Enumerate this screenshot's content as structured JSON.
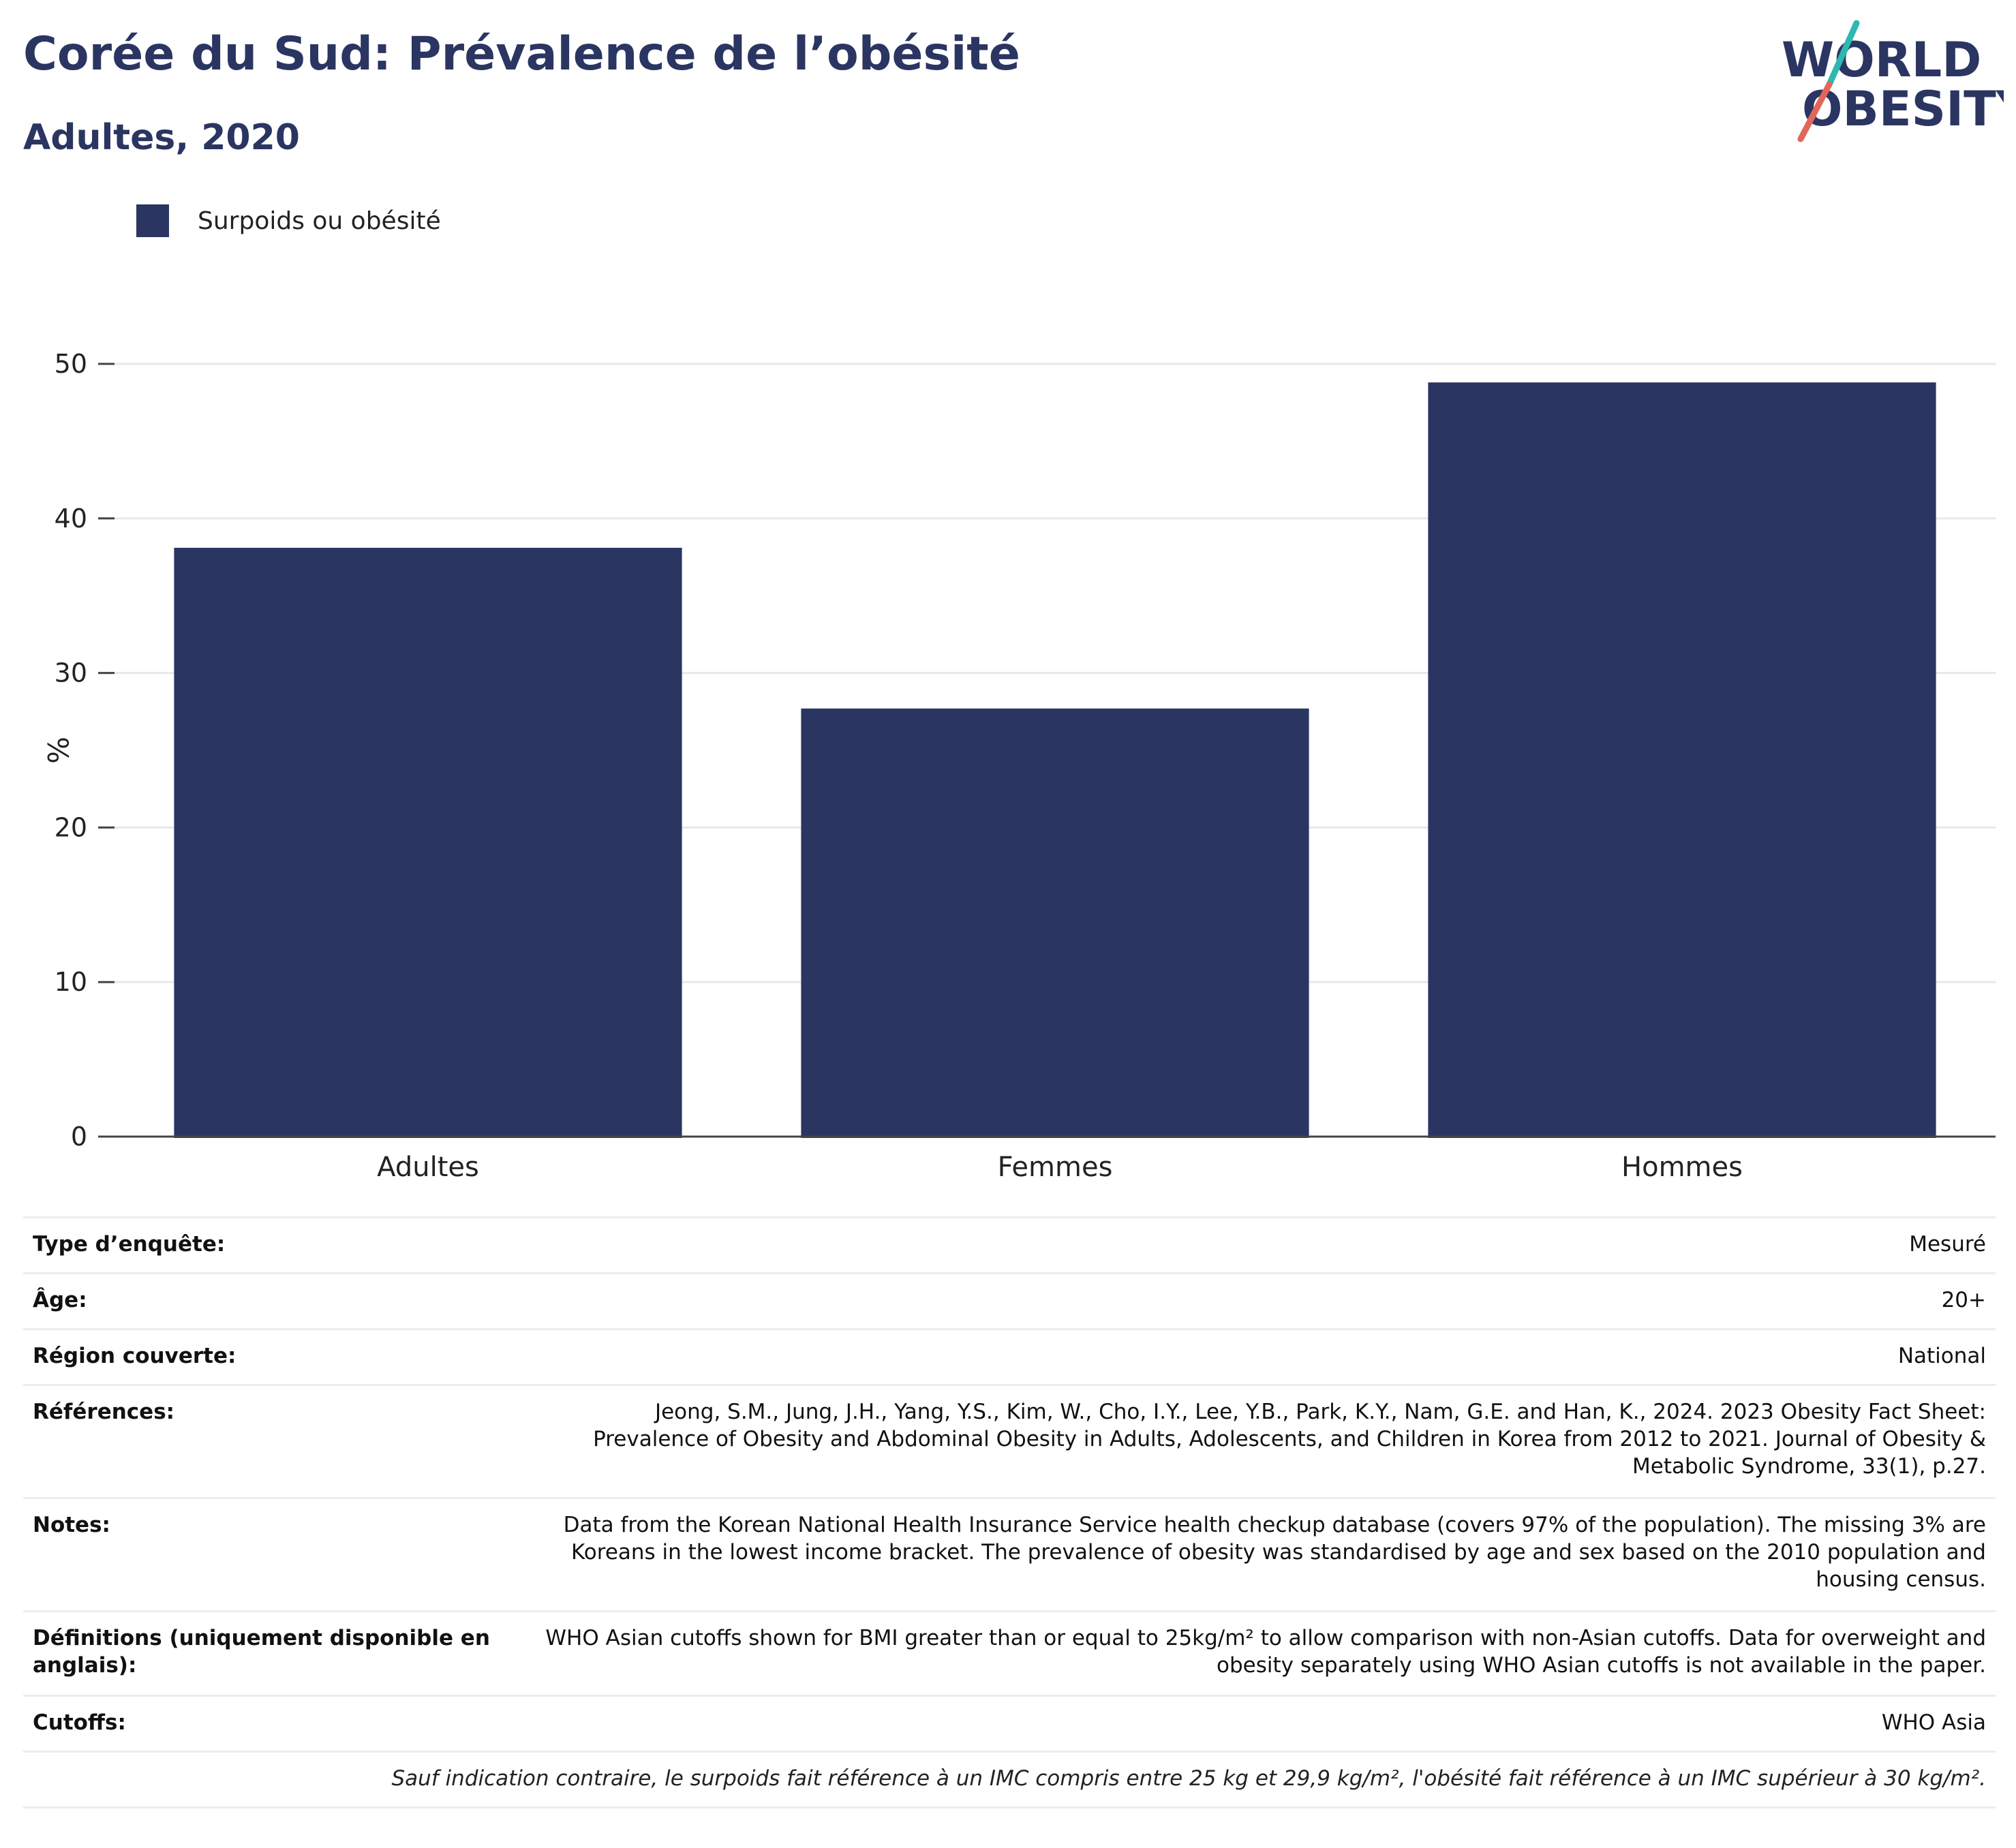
{
  "header": {
    "title": "Corée du Sud: Prévalence de l’obésité",
    "subtitle": "Adultes, 2020"
  },
  "logo": {
    "line1": "WORLD",
    "line2": "OBESITY",
    "colors": {
      "text": "#2b3562",
      "slash_top": "#2fb7b2",
      "slash_bottom": "#e0675a"
    }
  },
  "legend": {
    "items": [
      {
        "label": "Surpoids ou obésité",
        "color": "#2b3562"
      }
    ]
  },
  "chart_data": {
    "type": "bar",
    "categories": [
      "Adultes",
      "Femmes",
      "Hommes"
    ],
    "series": [
      {
        "name": "Surpoids ou obésité",
        "values": [
          38.1,
          27.7,
          48.8
        ],
        "color": "#2b3562"
      }
    ],
    "ylabel": "%",
    "ylim": [
      0,
      50
    ],
    "yticks": [
      0,
      10,
      20,
      30,
      40,
      50
    ],
    "grid": true,
    "legend_position": "top-left"
  },
  "info": {
    "rows": [
      {
        "label": "Type d’enquête:",
        "value": "Mesuré"
      },
      {
        "label": "Âge:",
        "value": "20+"
      },
      {
        "label": "Région couverte:",
        "value": "National"
      },
      {
        "label": "Références:",
        "value": "Jeong, S.M., Jung, J.H., Yang, Y.S., Kim, W., Cho, I.Y., Lee, Y.B., Park, K.Y., Nam, G.E. and Han, K., 2024. 2023 Obesity Fact Sheet: Prevalence of Obesity and Abdominal Obesity in Adults, Adolescents, and Children in Korea from 2012 to 2021. Journal of Obesity & Metabolic Syndrome, 33(1), p.27."
      },
      {
        "label": "Notes:",
        "value": "Data from the Korean National Health Insurance Service health checkup database (covers 97% of the population). The missing 3% are Koreans in the lowest income bracket. The prevalence of obesity was standardised by age and sex based on the 2010 population and housing census."
      },
      {
        "label": "Définitions (uniquement disponible en anglais):",
        "value": "WHO Asian cutoffs shown for BMI greater than or equal to 25kg/m² to allow comparison with non-Asian cutoffs. Data for overweight and obesity separately using WHO Asian cutoffs is not available in the paper."
      },
      {
        "label": "Cutoffs:",
        "value": "WHO Asia"
      }
    ],
    "footnote": "Sauf indication contraire, le surpoids fait référence à un IMC compris entre 25 kg et 29,9 kg/m², l'obésité fait référence à un IMC supérieur à 30 kg/m²."
  }
}
